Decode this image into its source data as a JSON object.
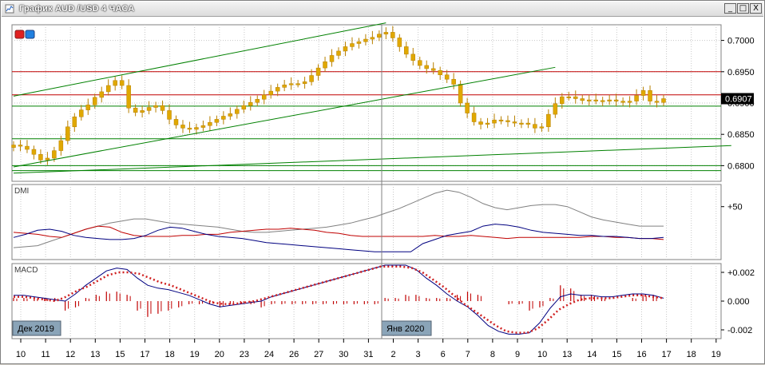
{
  "window": {
    "title": "График AUD /USD  4 ЧАСА",
    "minimize_label": "_",
    "restore_label": "□",
    "close_label": "X"
  },
  "chart_data": [
    {
      "type": "candlestick",
      "instrument": "AUD/USD",
      "timeframe": "4 ЧАСА",
      "ylim": [
        0.6775,
        0.7025
      ],
      "y_ticks": [
        "0.7000",
        "0.6950",
        "0.6900",
        "0.6850",
        "0.6800"
      ],
      "current_price": "0.6907",
      "closes": [
        0.6833,
        0.6831,
        0.6826,
        0.6818,
        0.6809,
        0.6812,
        0.6824,
        0.684,
        0.6862,
        0.6878,
        0.6889,
        0.6897,
        0.6909,
        0.6918,
        0.6928,
        0.6936,
        0.6928,
        0.6892,
        0.6885,
        0.6888,
        0.6893,
        0.6896,
        0.6888,
        0.6874,
        0.6865,
        0.686,
        0.6858,
        0.6861,
        0.6864,
        0.6869,
        0.6874,
        0.6879,
        0.6883,
        0.689,
        0.6896,
        0.6901,
        0.6906,
        0.6913,
        0.6919,
        0.6925,
        0.6929,
        0.6931,
        0.6931,
        0.6934,
        0.6944,
        0.6956,
        0.6966,
        0.6976,
        0.6983,
        0.699,
        0.6995,
        0.6998,
        0.7002,
        0.7005,
        0.701,
        0.7013,
        0.7004,
        0.699,
        0.6978,
        0.6968,
        0.696,
        0.6955,
        0.6952,
        0.6945,
        0.6938,
        0.693,
        0.69,
        0.6884,
        0.687,
        0.6866,
        0.6868,
        0.6873,
        0.6872,
        0.687,
        0.6868,
        0.6868,
        0.6866,
        0.686,
        0.6862,
        0.6882,
        0.6899,
        0.691,
        0.691,
        0.6907,
        0.6904,
        0.6905,
        0.6904,
        0.6903,
        0.6905,
        0.6903,
        0.6901,
        0.6903,
        0.6912,
        0.692,
        0.6903,
        0.6901,
        0.6907
      ],
      "horizontal_levels": [
        {
          "price": 0.695,
          "color": "#c00000"
        },
        {
          "price": 0.6913,
          "color": "#c00000"
        },
        {
          "price": 0.6895,
          "color": "#008000"
        },
        {
          "price": 0.6843,
          "color": "#008000"
        },
        {
          "price": 0.68,
          "color": "#008000"
        },
        {
          "price": 0.6792,
          "color": "#008000"
        }
      ],
      "trendlines": [
        {
          "from": {
            "bar": 0,
            "price": 0.6911
          },
          "to": {
            "bar": 55,
            "price": 0.7028
          },
          "color": "#008000"
        },
        {
          "from": {
            "bar": 0,
            "price": 0.6798
          },
          "to": {
            "bar": 80,
            "price": 0.6957
          },
          "color": "#008000"
        },
        {
          "from": {
            "bar": 0,
            "price": 0.6788
          },
          "to": {
            "bar": 106,
            "price": 0.6832
          },
          "color": "#008000"
        }
      ]
    },
    {
      "type": "line",
      "title": "DMI",
      "y_ticks": [
        "+50"
      ],
      "series": [
        {
          "color": "#808080",
          "values": [
            10,
            11,
            12,
            16,
            20,
            24,
            28,
            31,
            34,
            36,
            38,
            38,
            36,
            34,
            33,
            32,
            31,
            30,
            28,
            26,
            25,
            25,
            26,
            27,
            28,
            29,
            30,
            32,
            34,
            37,
            40,
            44,
            48,
            53,
            58,
            63,
            66,
            64,
            59,
            53,
            49,
            47,
            49,
            51,
            52,
            52,
            50,
            45,
            40,
            37,
            35,
            33,
            31,
            31,
            31
          ]
        },
        {
          "color": "#c00000",
          "values": [
            25,
            24,
            23,
            21,
            20,
            24,
            28,
            31,
            30,
            25,
            22,
            21,
            21,
            21,
            22,
            22,
            23,
            23,
            25,
            26,
            27,
            28,
            28,
            29,
            28,
            27,
            25,
            24,
            22,
            21,
            21,
            21,
            21,
            21,
            21,
            22,
            21,
            21,
            22,
            21,
            20,
            19,
            20,
            20,
            20,
            20,
            20,
            20,
            21,
            21,
            20,
            20,
            19,
            19,
            18
          ]
        },
        {
          "color": "#000080",
          "values": [
            20,
            23,
            27,
            28,
            26,
            22,
            20,
            19,
            18,
            18,
            19,
            22,
            27,
            30,
            29,
            26,
            23,
            21,
            20,
            19,
            17,
            15,
            14,
            13,
            12,
            11,
            10,
            9,
            8,
            7,
            6,
            6,
            6,
            6,
            14,
            18,
            22,
            24,
            26,
            31,
            33,
            32,
            30,
            27,
            25,
            24,
            23,
            22,
            22,
            21,
            21,
            20,
            19,
            19,
            20
          ]
        }
      ]
    },
    {
      "type": "line",
      "title": "MACD",
      "y_ticks": [
        "+0.002",
        "0.000",
        "-0.002"
      ],
      "ylim": [
        -0.0025,
        0.0025
      ],
      "series": [
        {
          "color": "#000080",
          "values": [
            0.0004,
            0.0004,
            0.0003,
            0.0002,
            0.0001,
            0.0,
            0.0005,
            0.0011,
            0.0016,
            0.0021,
            0.0023,
            0.0022,
            0.0016,
            0.0011,
            0.0009,
            0.0008,
            0.0006,
            0.0004,
            0.0001,
            -0.0002,
            -0.0004,
            -0.0003,
            -0.0002,
            -0.0001,
            0.0,
            0.0003,
            0.0005,
            0.0007,
            0.0009,
            0.0011,
            0.0013,
            0.0015,
            0.0017,
            0.0019,
            0.0021,
            0.0023,
            0.0025,
            0.0025,
            0.0025,
            0.0022,
            0.0016,
            0.0011,
            0.0005,
            0.0,
            -0.0004,
            -0.001,
            -0.0017,
            -0.0021,
            -0.0023,
            -0.0023,
            -0.0022,
            -0.0015,
            -0.0005,
            0.0003,
            0.0005,
            0.0004,
            0.0004,
            0.0003,
            0.0003,
            0.0004,
            0.0005,
            0.0005,
            0.0004,
            0.0002
          ]
        },
        {
          "color": "#d02020",
          "values": [
            0.0003,
            0.0003,
            0.0002,
            0.0001,
            0.0,
            0.0003,
            0.0007,
            0.001,
            0.0014,
            0.0018,
            0.002,
            0.002,
            0.0019,
            0.0016,
            0.0013,
            0.0011,
            0.0008,
            0.0005,
            0.0002,
            -0.0001,
            -0.0002,
            -0.0002,
            -0.0001,
            0.0,
            0.0002,
            0.0004,
            0.0006,
            0.0008,
            0.001,
            0.0012,
            0.0014,
            0.0016,
            0.0018,
            0.002,
            0.0022,
            0.0024,
            0.0024,
            0.0024,
            0.0023,
            0.002,
            0.0015,
            0.001,
            0.0004,
            -0.0002,
            -0.0007,
            -0.0012,
            -0.0017,
            -0.0021,
            -0.0022,
            -0.0022,
            -0.0019,
            -0.0013,
            -0.0006,
            -0.0002,
            0.0001,
            0.0002,
            0.0002,
            0.0002,
            0.0003,
            0.0004,
            0.0004,
            0.0003,
            0.0002
          ]
        }
      ]
    }
  ],
  "date_labels": [
    {
      "text": "Дек 2019",
      "bar": 0
    },
    {
      "text": "Янв 2020",
      "bar": 55
    }
  ],
  "x_ticks": [
    "10",
    "11",
    "12",
    "13",
    "15",
    "17",
    "18",
    "19",
    "20",
    "23",
    "24",
    "26",
    "27",
    "30",
    "31",
    "2",
    "3",
    "6",
    "7",
    "8",
    "9",
    "10",
    "13",
    "14",
    "15",
    "16",
    "17",
    "18",
    "19"
  ],
  "colors": {
    "candle": "#e0a800",
    "candle_dark": "#b88000"
  },
  "icons": {
    "titlebar": "chart-window-icon",
    "chart_buttons": [
      "red-square-icon",
      "blue-square-icon"
    ]
  }
}
